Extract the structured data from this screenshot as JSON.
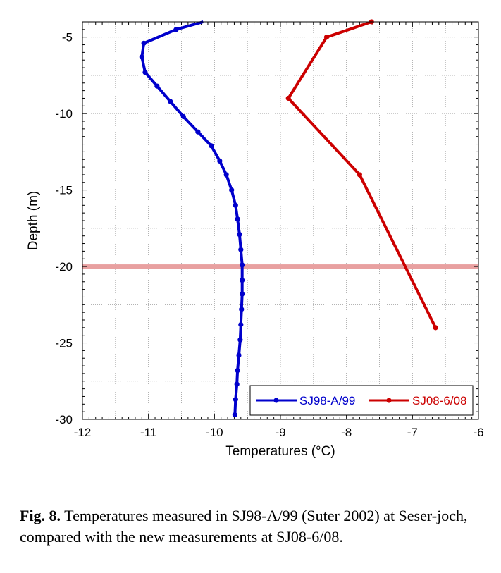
{
  "chart_data": {
    "type": "line",
    "title": "",
    "xlabel": "Temperatures (°C)",
    "ylabel": "Depth (m)",
    "xlim": [
      -12,
      -6
    ],
    "ylim": [
      -30,
      -4
    ],
    "xticks": [
      -12,
      -11,
      -10,
      -9,
      -8,
      -7,
      -6
    ],
    "yticks": [
      -5,
      -10,
      -15,
      -20,
      -25,
      -30
    ],
    "grid": true,
    "reference_line": {
      "y": -20,
      "color": "#e8a0a0"
    },
    "legend": {
      "placement": "bottom-right"
    },
    "series": [
      {
        "name": "SJ98-A/99",
        "color": "#0000cc",
        "points": [
          [
            -10.17,
            -4.0
          ],
          [
            -10.58,
            -4.5
          ],
          [
            -11.07,
            -5.4
          ],
          [
            -11.1,
            -6.3
          ],
          [
            -11.05,
            -7.3
          ],
          [
            -10.87,
            -8.2
          ],
          [
            -10.67,
            -9.2
          ],
          [
            -10.47,
            -10.2
          ],
          [
            -10.25,
            -11.2
          ],
          [
            -10.05,
            -12.1
          ],
          [
            -9.92,
            -13.1
          ],
          [
            -9.82,
            -14.0
          ],
          [
            -9.74,
            -15.0
          ],
          [
            -9.68,
            -16.0
          ],
          [
            -9.65,
            -16.9
          ],
          [
            -9.62,
            -17.9
          ],
          [
            -9.6,
            -18.9
          ],
          [
            -9.58,
            -19.9
          ],
          [
            -9.58,
            -20.9
          ],
          [
            -9.58,
            -21.8
          ],
          [
            -9.59,
            -22.8
          ],
          [
            -9.6,
            -23.8
          ],
          [
            -9.61,
            -24.8
          ],
          [
            -9.63,
            -25.8
          ],
          [
            -9.65,
            -26.8
          ],
          [
            -9.66,
            -27.7
          ],
          [
            -9.68,
            -28.7
          ],
          [
            -9.69,
            -29.7
          ]
        ]
      },
      {
        "name": "SJ08-6/08",
        "color": "#cc0000",
        "points": [
          [
            -7.62,
            -4.0
          ],
          [
            -8.3,
            -5.0
          ],
          [
            -8.88,
            -9.0
          ],
          [
            -7.8,
            -14.0
          ],
          [
            -6.65,
            -24.0
          ]
        ]
      }
    ]
  },
  "caption": {
    "label": "Fig. 8.",
    "text": " Temperatures measured in SJ98-A/99 (Suter 2002) at Seser-joch, compared with the new measurements at SJ08-6/08."
  }
}
